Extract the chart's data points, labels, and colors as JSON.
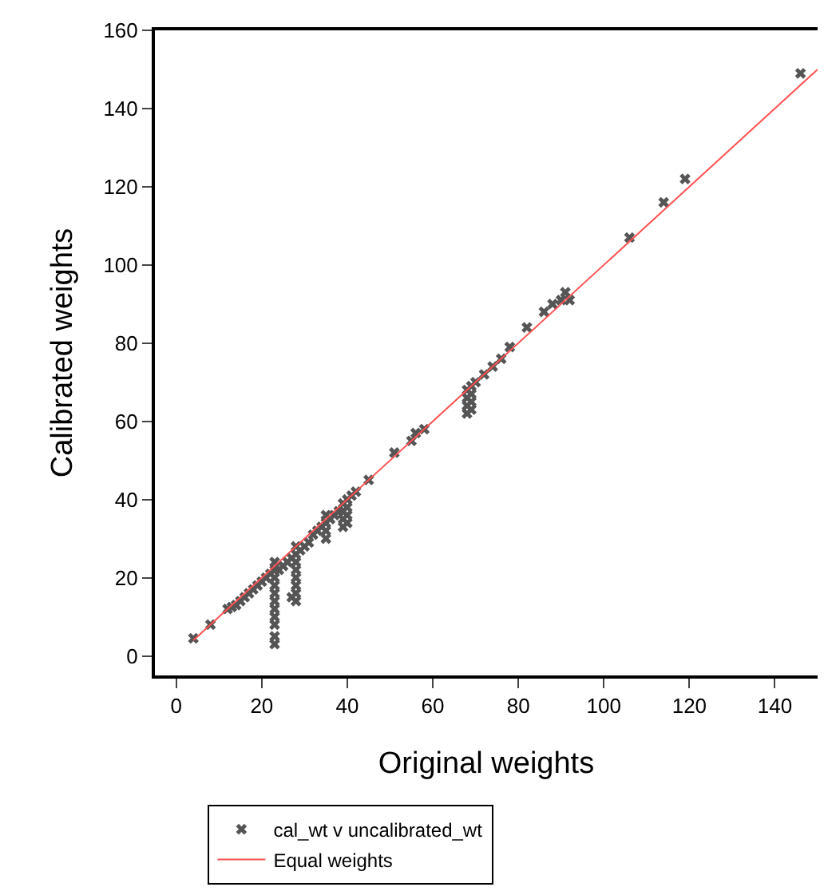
{
  "chart_data": {
    "type": "scatter",
    "xlabel": "Original weights",
    "ylabel": "Calibrated weights",
    "xlim": [
      -5,
      150
    ],
    "xticks": [
      0,
      20,
      40,
      60,
      80,
      100,
      120,
      140
    ],
    "ylim": [
      -5,
      160
    ],
    "yticks": [
      0,
      20,
      40,
      60,
      80,
      100,
      120,
      140,
      160
    ],
    "grid": false,
    "legend": "bottom",
    "series": [
      {
        "name": "cal_wt v uncalibrated_wt",
        "marker": "cross",
        "color": "#555555",
        "x": [
          4,
          8,
          12,
          13,
          14,
          15,
          16,
          17,
          18,
          19,
          20,
          21,
          22,
          23,
          23,
          23,
          23,
          23,
          23,
          23,
          23,
          23,
          23,
          23,
          24,
          25,
          26,
          27,
          28,
          28,
          28,
          28,
          28,
          28,
          28,
          28,
          27,
          29,
          30,
          31,
          32,
          33,
          34,
          35,
          35,
          35,
          35,
          36,
          37,
          38,
          39,
          39,
          39,
          39,
          40,
          40,
          40,
          40,
          41,
          42,
          45,
          51,
          55,
          56,
          58,
          68,
          68,
          68,
          68,
          69,
          69,
          69,
          69,
          70,
          72,
          74,
          76,
          78,
          82,
          86,
          88,
          90,
          91,
          92,
          106,
          114,
          119,
          146
        ],
        "values": [
          4.5,
          8,
          12,
          12.5,
          13,
          14,
          15,
          16,
          17,
          18,
          19,
          20,
          21,
          3,
          5,
          8,
          10,
          12,
          14,
          16,
          18,
          20,
          22,
          24,
          22,
          23,
          24,
          25,
          14,
          16,
          18,
          20,
          22,
          24,
          26,
          28,
          15,
          27,
          28,
          29,
          31,
          32,
          33,
          30,
          32,
          34,
          36,
          35,
          36,
          37,
          33,
          35,
          37,
          39,
          34,
          36,
          38,
          40,
          41,
          42,
          45,
          52,
          55,
          57,
          58,
          62,
          64,
          66,
          68,
          63,
          65,
          67,
          69,
          70,
          72,
          74,
          76,
          79,
          84,
          88,
          90,
          91,
          93,
          91,
          107,
          116,
          122,
          149
        ]
      },
      {
        "name": "Equal weights",
        "type": "line",
        "color": "#ff5050",
        "line_style": "solid",
        "marker": "none",
        "x": [
          4,
          150
        ],
        "values": [
          4,
          150
        ]
      }
    ]
  }
}
